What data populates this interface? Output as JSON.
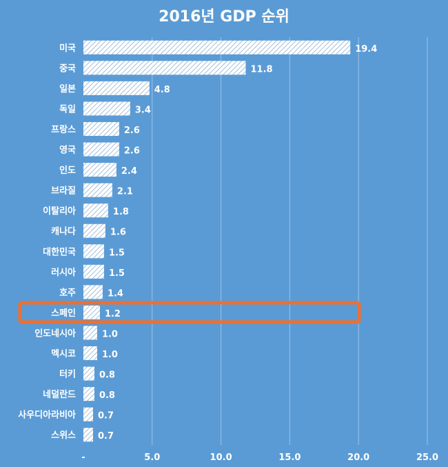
{
  "chart_data": {
    "type": "bar",
    "orientation": "horizontal",
    "title": "2016년 GDP 순위",
    "categories": [
      "미국",
      "중국",
      "일본",
      "독일",
      "프랑스",
      "영국",
      "인도",
      "브라질",
      "이탈리아",
      "캐나다",
      "대한민국",
      "러시아",
      "호주",
      "스페인",
      "인도네시아",
      "멕시코",
      "터키",
      "네덜란드",
      "사우디아라비아",
      "스위스"
    ],
    "values": [
      19.4,
      11.8,
      4.8,
      3.4,
      2.6,
      2.6,
      2.4,
      2.1,
      1.8,
      1.6,
      1.5,
      1.5,
      1.4,
      1.2,
      1.0,
      1.0,
      0.8,
      0.8,
      0.7,
      0.7
    ],
    "value_labels": [
      "19.4",
      "11.8",
      "4.8",
      "3.4",
      "2.6",
      "2.6",
      "2.4",
      "2.1",
      "1.8",
      "1.6",
      "1.5",
      "1.5",
      "1.4",
      "1.2",
      "1.0",
      "1.0",
      "0.8",
      "0.8",
      "0.7",
      "0.7"
    ],
    "x_ticks": [
      "-",
      "5.0",
      "10.0",
      "15.0",
      "20.0",
      "25.0"
    ],
    "xlim": [
      0,
      25
    ],
    "highlighted_category": "스페인",
    "grid": "vertical",
    "colors": {
      "background": "#5b9bd5",
      "bar_fill": "#ffffff",
      "bar_hatch": "#8aaed0",
      "text": "#ffffff",
      "gridline": "#9dc3e6",
      "highlight_border": "#ed7031"
    }
  }
}
